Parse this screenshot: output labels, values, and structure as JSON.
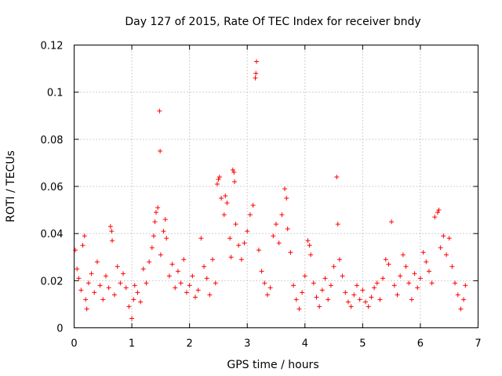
{
  "chart_data": {
    "type": "scatter",
    "title": "Day 127 of 2015, Rate Of TEC Index for receiver bndy",
    "xlabel": "GPS time / hours",
    "ylabel": "ROTI / TECUs",
    "xlim": [
      0,
      7
    ],
    "ylim": [
      0,
      0.12
    ],
    "x_ticks": [
      0,
      1,
      2,
      3,
      4,
      5,
      6,
      7
    ],
    "x_tick_labels": [
      "0",
      "1",
      "2",
      "3",
      "4",
      "5",
      "6",
      "7"
    ],
    "y_ticks": [
      0,
      0.02,
      0.04,
      0.06,
      0.08,
      0.1,
      0.12
    ],
    "y_tick_labels": [
      "0",
      "0.02",
      "0.04",
      "0.06",
      "0.08",
      "0.1",
      "0.12"
    ],
    "grid": true,
    "marker": "+",
    "color": "#ff0000",
    "series": [
      {
        "name": "ROTI",
        "points": [
          [
            0.02,
            0.033
          ],
          [
            0.05,
            0.025
          ],
          [
            0.08,
            0.021
          ],
          [
            0.12,
            0.016
          ],
          [
            0.15,
            0.035
          ],
          [
            0.18,
            0.039
          ],
          [
            0.2,
            0.012
          ],
          [
            0.22,
            0.008
          ],
          [
            0.25,
            0.019
          ],
          [
            0.3,
            0.023
          ],
          [
            0.35,
            0.015
          ],
          [
            0.4,
            0.028
          ],
          [
            0.45,
            0.018
          ],
          [
            0.5,
            0.012
          ],
          [
            0.55,
            0.022
          ],
          [
            0.6,
            0.017
          ],
          [
            0.63,
            0.043
          ],
          [
            0.65,
            0.041
          ],
          [
            0.66,
            0.037
          ],
          [
            0.7,
            0.014
          ],
          [
            0.75,
            0.026
          ],
          [
            0.8,
            0.019
          ],
          [
            0.85,
            0.023
          ],
          [
            0.9,
            0.017
          ],
          [
            0.95,
            0.009
          ],
          [
            1.0,
            0.004
          ],
          [
            1.03,
            0.012
          ],
          [
            1.05,
            0.018
          ],
          [
            1.1,
            0.015
          ],
          [
            1.15,
            0.011
          ],
          [
            1.2,
            0.025
          ],
          [
            1.25,
            0.019
          ],
          [
            1.3,
            0.028
          ],
          [
            1.35,
            0.034
          ],
          [
            1.38,
            0.039
          ],
          [
            1.4,
            0.045
          ],
          [
            1.42,
            0.049
          ],
          [
            1.45,
            0.051
          ],
          [
            1.48,
            0.092
          ],
          [
            1.49,
            0.075
          ],
          [
            1.5,
            0.031
          ],
          [
            1.55,
            0.041
          ],
          [
            1.58,
            0.046
          ],
          [
            1.6,
            0.038
          ],
          [
            1.65,
            0.022
          ],
          [
            1.7,
            0.027
          ],
          [
            1.75,
            0.017
          ],
          [
            1.8,
            0.024
          ],
          [
            1.85,
            0.019
          ],
          [
            1.9,
            0.029
          ],
          [
            1.95,
            0.015
          ],
          [
            2.0,
            0.018
          ],
          [
            2.05,
            0.022
          ],
          [
            2.1,
            0.013
          ],
          [
            2.15,
            0.016
          ],
          [
            2.2,
            0.038
          ],
          [
            2.25,
            0.026
          ],
          [
            2.3,
            0.021
          ],
          [
            2.35,
            0.014
          ],
          [
            2.4,
            0.029
          ],
          [
            2.45,
            0.019
          ],
          [
            2.48,
            0.061
          ],
          [
            2.5,
            0.063
          ],
          [
            2.52,
            0.064
          ],
          [
            2.55,
            0.055
          ],
          [
            2.6,
            0.048
          ],
          [
            2.62,
            0.056
          ],
          [
            2.65,
            0.053
          ],
          [
            2.7,
            0.038
          ],
          [
            2.72,
            0.03
          ],
          [
            2.75,
            0.067
          ],
          [
            2.77,
            0.066
          ],
          [
            2.78,
            0.062
          ],
          [
            2.8,
            0.044
          ],
          [
            2.85,
            0.035
          ],
          [
            2.9,
            0.029
          ],
          [
            2.95,
            0.036
          ],
          [
            3.0,
            0.041
          ],
          [
            3.05,
            0.048
          ],
          [
            3.1,
            0.052
          ],
          [
            3.14,
            0.106
          ],
          [
            3.15,
            0.108
          ],
          [
            3.16,
            0.113
          ],
          [
            3.2,
            0.033
          ],
          [
            3.25,
            0.024
          ],
          [
            3.3,
            0.019
          ],
          [
            3.35,
            0.014
          ],
          [
            3.4,
            0.017
          ],
          [
            3.45,
            0.039
          ],
          [
            3.5,
            0.044
          ],
          [
            3.55,
            0.036
          ],
          [
            3.6,
            0.048
          ],
          [
            3.65,
            0.059
          ],
          [
            3.68,
            0.055
          ],
          [
            3.7,
            0.042
          ],
          [
            3.75,
            0.032
          ],
          [
            3.8,
            0.018
          ],
          [
            3.85,
            0.012
          ],
          [
            3.9,
            0.008
          ],
          [
            3.95,
            0.015
          ],
          [
            4.0,
            0.022
          ],
          [
            4.05,
            0.037
          ],
          [
            4.08,
            0.035
          ],
          [
            4.1,
            0.031
          ],
          [
            4.15,
            0.019
          ],
          [
            4.2,
            0.013
          ],
          [
            4.25,
            0.009
          ],
          [
            4.3,
            0.016
          ],
          [
            4.35,
            0.021
          ],
          [
            4.4,
            0.012
          ],
          [
            4.45,
            0.018
          ],
          [
            4.5,
            0.026
          ],
          [
            4.55,
            0.064
          ],
          [
            4.57,
            0.044
          ],
          [
            4.6,
            0.029
          ],
          [
            4.65,
            0.022
          ],
          [
            4.7,
            0.015
          ],
          [
            4.75,
            0.011
          ],
          [
            4.8,
            0.009
          ],
          [
            4.85,
            0.014
          ],
          [
            4.9,
            0.018
          ],
          [
            4.95,
            0.012
          ],
          [
            5.0,
            0.016
          ],
          [
            5.05,
            0.011
          ],
          [
            5.1,
            0.009
          ],
          [
            5.15,
            0.013
          ],
          [
            5.2,
            0.017
          ],
          [
            5.25,
            0.019
          ],
          [
            5.3,
            0.012
          ],
          [
            5.35,
            0.021
          ],
          [
            5.4,
            0.029
          ],
          [
            5.45,
            0.027
          ],
          [
            5.5,
            0.045
          ],
          [
            5.55,
            0.018
          ],
          [
            5.6,
            0.014
          ],
          [
            5.65,
            0.022
          ],
          [
            5.7,
            0.031
          ],
          [
            5.75,
            0.026
          ],
          [
            5.8,
            0.019
          ],
          [
            5.85,
            0.012
          ],
          [
            5.9,
            0.023
          ],
          [
            5.95,
            0.017
          ],
          [
            6.0,
            0.021
          ],
          [
            6.05,
            0.032
          ],
          [
            6.1,
            0.028
          ],
          [
            6.15,
            0.024
          ],
          [
            6.2,
            0.019
          ],
          [
            6.25,
            0.047
          ],
          [
            6.3,
            0.049
          ],
          [
            6.32,
            0.05
          ],
          [
            6.35,
            0.034
          ],
          [
            6.4,
            0.039
          ],
          [
            6.45,
            0.031
          ],
          [
            6.5,
            0.038
          ],
          [
            6.55,
            0.026
          ],
          [
            6.6,
            0.019
          ],
          [
            6.65,
            0.014
          ],
          [
            6.7,
            0.008
          ],
          [
            6.75,
            0.012
          ],
          [
            6.78,
            0.018
          ]
        ]
      }
    ]
  }
}
